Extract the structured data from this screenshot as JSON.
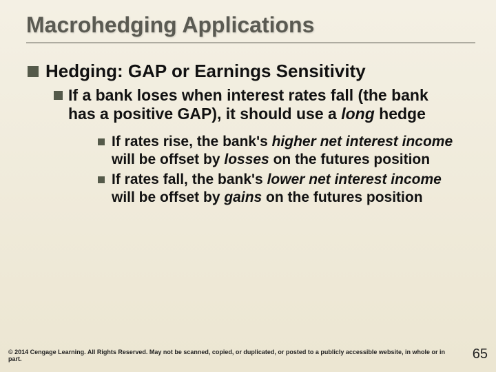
{
  "title": "Macrohedging Applications",
  "lvl1": {
    "text": "Hedging: GAP or Earnings Sensitivity"
  },
  "lvl2": {
    "prefix": "If a bank loses when interest rates fall (the bank has a positive GAP), it should use a ",
    "italic": "long",
    "suffix": " hedge"
  },
  "lvl3a": {
    "p1": "If rates rise, the bank's ",
    "i1": "higher net interest income",
    "p2": " will be offset by ",
    "i2": "losses",
    "p3": " on the futures position"
  },
  "lvl3b": {
    "p1": "If rates fall, the bank's ",
    "i1": "lower net interest income",
    "p2": " will be offset by ",
    "i2": "gains",
    "p3": " on the futures position"
  },
  "copyright": "© 2014 Cengage Learning. All Rights Reserved. May not be scanned, copied, or duplicated, or posted to a publicly accessible website, in whole or in part.",
  "page_number": "65",
  "colors": {
    "bullet": "#555a4a",
    "title": "#5a5a52",
    "bg_top": "#f4f0e4",
    "bg_bottom": "#ece6d2"
  }
}
